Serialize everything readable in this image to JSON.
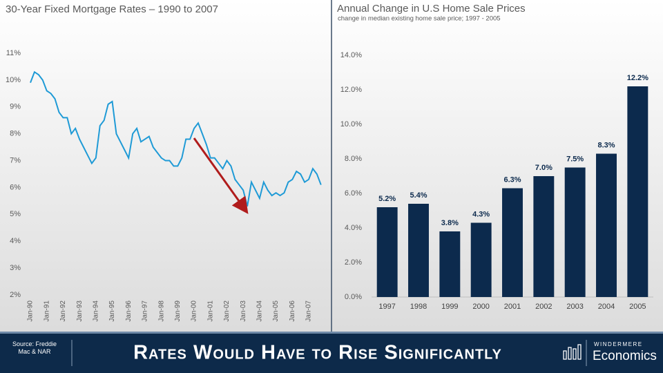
{
  "chart_data": [
    {
      "type": "line",
      "title": "30-Year Fixed Mortgage Rates – 1990 to 2007",
      "categories": [
        "Jan-90",
        null,
        null,
        null,
        "Jan-91",
        null,
        null,
        null,
        "Jan-92",
        null,
        null,
        null,
        "Jan-93",
        null,
        null,
        null,
        "Jan-94",
        null,
        null,
        null,
        "Jan-95",
        null,
        null,
        null,
        "Jan-96",
        null,
        null,
        null,
        "Jan-97",
        null,
        null,
        null,
        "Jan-98",
        null,
        null,
        null,
        "Jan-99",
        null,
        null,
        null,
        "Jan-00",
        null,
        null,
        null,
        "Jan-01",
        null,
        null,
        null,
        "Jan-02",
        null,
        null,
        null,
        "Jan-03",
        null,
        null,
        null,
        "Jan-04",
        null,
        null,
        null,
        "Jan-05",
        null,
        null,
        null,
        "Jan-06",
        null,
        null,
        null,
        "Jan-07",
        null,
        null,
        null
      ],
      "values": [
        9.9,
        10.3,
        10.2,
        10.0,
        9.6,
        9.5,
        9.3,
        8.8,
        8.6,
        8.6,
        8.0,
        8.2,
        7.8,
        7.5,
        7.2,
        6.9,
        7.1,
        8.3,
        8.5,
        9.1,
        9.2,
        8.0,
        7.7,
        7.4,
        7.1,
        8.0,
        8.2,
        7.7,
        7.8,
        7.9,
        7.5,
        7.3,
        7.1,
        7.0,
        7.0,
        6.8,
        6.8,
        7.1,
        7.8,
        7.8,
        8.2,
        8.4,
        8.0,
        7.6,
        7.1,
        7.1,
        6.9,
        6.7,
        7.0,
        6.8,
        6.3,
        6.1,
        5.9,
        5.3,
        6.2,
        5.9,
        5.6,
        6.2,
        5.9,
        5.7,
        5.8,
        5.7,
        5.8,
        6.2,
        6.3,
        6.6,
        6.5,
        6.2,
        6.3,
        6.7,
        6.5,
        6.1
      ],
      "color": "#1e9ad6",
      "ylim": [
        2,
        11
      ],
      "yticks": [
        {
          "value": 2,
          "label": "2%"
        },
        {
          "value": 3,
          "label": "3%"
        },
        {
          "value": 4,
          "label": "4%"
        },
        {
          "value": 5,
          "label": "5%"
        },
        {
          "value": 6,
          "label": "6%"
        },
        {
          "value": 7,
          "label": "7%"
        },
        {
          "value": 8,
          "label": "8%"
        },
        {
          "value": 9,
          "label": "9%"
        },
        {
          "value": 10,
          "label": "10%"
        },
        {
          "value": 11,
          "label": "11%"
        }
      ],
      "grid": false
    },
    {
      "type": "bar",
      "title": "Annual Change in U.S Home Sale Prices",
      "subtitle": "change in median  existing home sale price; 1997 - 2005",
      "categories": [
        "1997",
        "1998",
        "1999",
        "2000",
        "2001",
        "2002",
        "2003",
        "2004",
        "2005"
      ],
      "values": [
        5.2,
        5.4,
        3.8,
        4.3,
        6.3,
        7.0,
        7.5,
        8.3,
        12.2
      ],
      "value_labels": [
        "5.2%",
        "5.4%",
        "3.8%",
        "4.3%",
        "6.3%",
        "7.0%",
        "7.5%",
        "8.3%",
        "12.2%"
      ],
      "color": "#0c2a4d",
      "ylim": [
        0,
        14
      ],
      "yticks": [
        {
          "value": 0,
          "label": "0.0%"
        },
        {
          "value": 2,
          "label": "2.0%"
        },
        {
          "value": 4,
          "label": "4.0%"
        },
        {
          "value": 6,
          "label": "6.0%"
        },
        {
          "value": 8,
          "label": "8.0%"
        },
        {
          "value": 10,
          "label": "10.0%"
        },
        {
          "value": 12,
          "label": "12.0%"
        },
        {
          "value": 14,
          "label": "14.0%"
        }
      ],
      "grid": false
    }
  ],
  "footer": {
    "source": "Source: Freddie Mac & NAR",
    "headline": "Rates Would Have to Rise Significantly",
    "brand": "WINDERMERE",
    "brand_sub": "Economics"
  }
}
